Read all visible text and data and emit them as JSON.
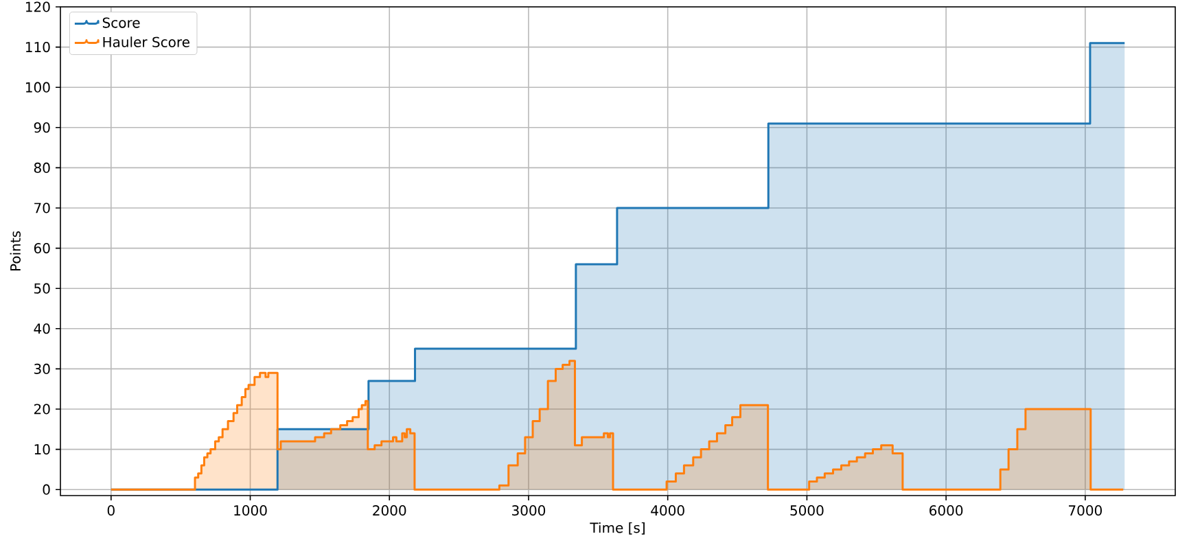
{
  "chart_data": {
    "type": "step",
    "xlabel": "Time [s]",
    "ylabel": "Points",
    "xlim": [
      -364,
      7647
    ],
    "ylim": [
      -1.5,
      120
    ],
    "xticks": [
      0,
      1000,
      2000,
      3000,
      4000,
      5000,
      6000,
      7000
    ],
    "yticks": [
      0,
      10,
      20,
      30,
      40,
      50,
      60,
      70,
      80,
      90,
      100,
      110,
      120
    ],
    "grid": true,
    "legend": "top left",
    "series": [
      {
        "name": "Score",
        "color": "#1f77b4",
        "x": [
          0,
          1196,
          1850,
          2184,
          3340,
          3636,
          4723,
          7035,
          7283
        ],
        "values": [
          0,
          15,
          27,
          35,
          56,
          70,
          91,
          111,
          111
        ]
      },
      {
        "name": "Hauler Score",
        "color": "#ff7f0e",
        "x": [
          0,
          603,
          626,
          649,
          669,
          692,
          715,
          748,
          774,
          801,
          840,
          880,
          906,
          939,
          965,
          988,
          1031,
          1070,
          1110,
          1130,
          1196,
          1219,
          1466,
          1531,
          1581,
          1647,
          1696,
          1736,
          1779,
          1802,
          1828,
          1845,
          1894,
          1943,
          2026,
          2050,
          2092,
          2110,
          2125,
          2150,
          2181,
          2790,
          2856,
          2922,
          2975,
          3030,
          3080,
          3139,
          3195,
          3245,
          3294,
          3333,
          3383,
          3541,
          3570,
          3585,
          3607,
          3992,
          4058,
          4117,
          4183,
          4239,
          4298,
          4354,
          4414,
          4463,
          4522,
          4720,
          5016,
          5072,
          5128,
          5188,
          5247,
          5303,
          5359,
          5418,
          5474,
          5534,
          5616,
          5688,
          6390,
          6449,
          6512,
          6571,
          7039,
          7273
        ],
        "values": [
          0,
          3,
          4,
          6,
          8,
          9,
          10,
          12,
          13,
          15,
          17,
          19,
          21,
          23,
          25,
          26,
          28,
          29,
          28,
          29,
          10,
          12,
          13,
          14,
          15,
          16,
          17,
          18,
          20,
          21,
          22,
          10,
          11,
          12,
          13,
          12,
          14,
          13,
          15,
          14,
          0,
          1,
          6,
          9,
          13,
          17,
          20,
          27,
          30,
          31,
          32,
          11,
          13,
          14,
          13,
          14,
          0,
          2,
          4,
          6,
          8,
          10,
          12,
          14,
          16,
          18,
          21,
          0,
          2,
          3,
          4,
          5,
          6,
          7,
          8,
          9,
          10,
          11,
          9,
          0,
          5,
          10,
          15,
          20,
          0,
          0
        ]
      }
    ]
  }
}
